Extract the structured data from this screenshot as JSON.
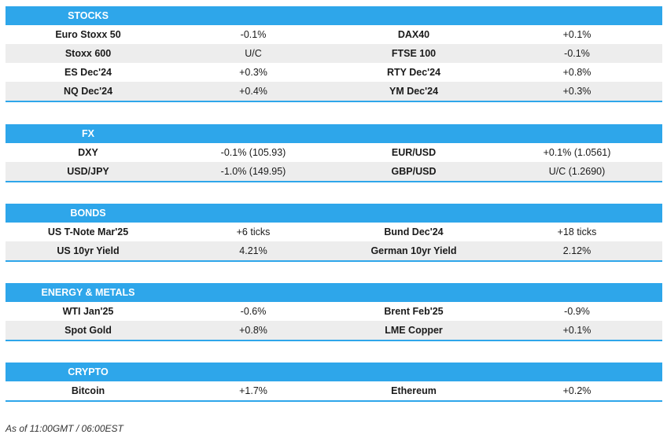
{
  "sections": [
    {
      "title": "STOCKS",
      "rows": [
        [
          "Euro Stoxx 50",
          "-0.1%",
          "DAX40",
          "+0.1%"
        ],
        [
          "Stoxx 600",
          "U/C",
          "FTSE 100",
          "-0.1%"
        ],
        [
          "ES Dec'24",
          "+0.3%",
          "RTY Dec'24",
          "+0.8%"
        ],
        [
          "NQ Dec'24",
          "+0.4%",
          "YM Dec'24",
          "+0.3%"
        ]
      ]
    },
    {
      "title": "FX",
      "rows": [
        [
          "DXY",
          "-0.1% (105.93)",
          "EUR/USD",
          "+0.1% (1.0561)"
        ],
        [
          "USD/JPY",
          "-1.0% (149.95)",
          "GBP/USD",
          "U/C (1.2690)"
        ]
      ]
    },
    {
      "title": "BONDS",
      "rows": [
        [
          "US T-Note Mar'25",
          "+6 ticks",
          "Bund Dec'24",
          "+18 ticks"
        ],
        [
          "US 10yr Yield",
          "4.21%",
          "German 10yr Yield",
          "2.12%"
        ]
      ]
    },
    {
      "title": "ENERGY & METALS",
      "rows": [
        [
          "WTI Jan'25",
          "-0.6%",
          "Brent Feb'25",
          "-0.9%"
        ],
        [
          "Spot Gold",
          "+0.8%",
          "LME Copper",
          "+0.1%"
        ]
      ]
    },
    {
      "title": "CRYPTO",
      "rows": [
        [
          "Bitcoin",
          "+1.7%",
          "Ethereum",
          "+0.2%"
        ]
      ]
    }
  ],
  "footer": "As of 11:00GMT / 06:00EST"
}
